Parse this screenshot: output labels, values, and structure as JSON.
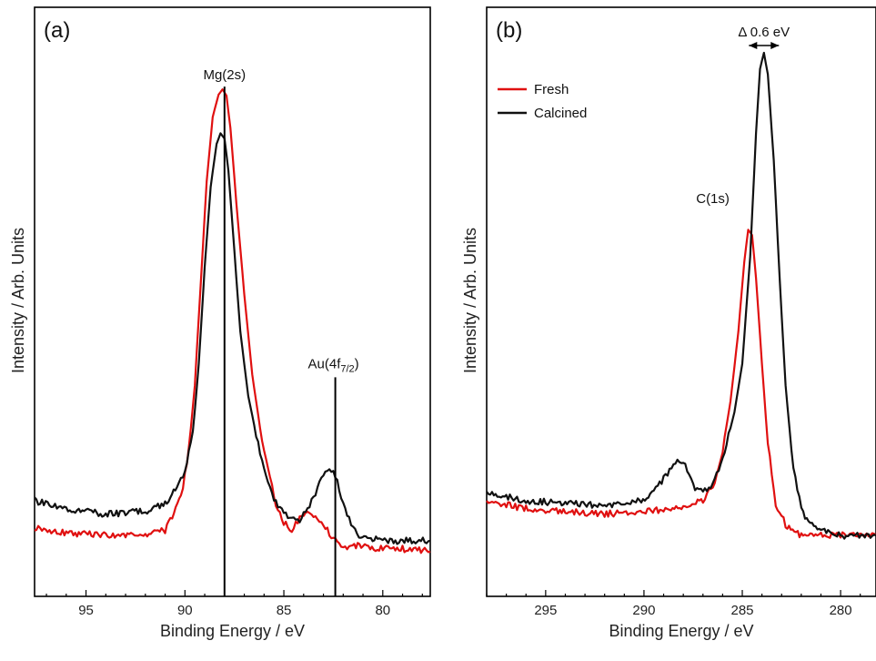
{
  "chart_data": [
    {
      "type": "line",
      "panel_label": "(a)",
      "xlabel": "Binding Energy / eV",
      "ylabel": "Intensity / Arb. Units",
      "xlim": [
        97.6,
        77.6
      ],
      "ylim": [
        0,
        1
      ],
      "x_reversed": true,
      "xticks": [
        95,
        90,
        85,
        80
      ],
      "grid": false,
      "annotations": [
        {
          "text": "Mg(2s)",
          "x": 88.0,
          "line_from": 0.0,
          "line_to": 0.937
        },
        {
          "text_main": "Au(4f",
          "text_sub": "7/2",
          "text_end": ")",
          "x": 82.4,
          "line_from": 0.0,
          "line_to": 0.395
        }
      ],
      "series": [
        {
          "name": "Fresh",
          "color": "#e01010",
          "x": [
            97.6,
            96.0,
            94.0,
            92.0,
            91.0,
            90.2,
            89.8,
            89.5,
            89.2,
            88.9,
            88.6,
            88.3,
            88.1,
            87.9,
            87.7,
            87.4,
            87.0,
            86.6,
            86.2,
            85.8,
            85.4,
            85.0,
            84.6,
            84.2,
            83.8,
            83.4,
            83.0,
            82.6,
            82.2,
            81.8,
            81.0,
            80.0,
            79.0,
            77.6
          ],
          "y": [
            0.115,
            0.105,
            0.1,
            0.1,
            0.11,
            0.17,
            0.26,
            0.38,
            0.57,
            0.76,
            0.88,
            0.922,
            0.932,
            0.92,
            0.86,
            0.72,
            0.55,
            0.4,
            0.3,
            0.22,
            0.16,
            0.125,
            0.11,
            0.13,
            0.14,
            0.135,
            0.118,
            0.1,
            0.085,
            0.08,
            0.08,
            0.075,
            0.075,
            0.07
          ]
        },
        {
          "name": "Calcined",
          "color": "#111111",
          "x": [
            97.6,
            96.0,
            94.0,
            92.0,
            91.0,
            90.4,
            90.0,
            89.6,
            89.3,
            89.0,
            88.7,
            88.4,
            88.2,
            88.0,
            87.8,
            87.5,
            87.2,
            86.8,
            86.3,
            85.8,
            85.4,
            85.0,
            84.6,
            84.2,
            83.8,
            83.4,
            83.0,
            82.7,
            82.5,
            82.3,
            82.0,
            81.6,
            81.2,
            80.6,
            80.0,
            79.0,
            77.6
          ],
          "y": [
            0.165,
            0.15,
            0.14,
            0.145,
            0.16,
            0.19,
            0.22,
            0.29,
            0.42,
            0.6,
            0.75,
            0.83,
            0.85,
            0.84,
            0.78,
            0.63,
            0.48,
            0.36,
            0.27,
            0.2,
            0.16,
            0.14,
            0.13,
            0.13,
            0.15,
            0.18,
            0.21,
            0.225,
            0.22,
            0.2,
            0.16,
            0.12,
            0.1,
            0.095,
            0.09,
            0.09,
            0.09
          ]
        }
      ]
    },
    {
      "type": "line",
      "panel_label": "(b)",
      "xlabel": "Binding Energy / eV",
      "ylabel": "Intensity / Arb. Units",
      "xlim": [
        298.0,
        278.2
      ],
      "ylim": [
        0,
        1
      ],
      "x_reversed": true,
      "xticks": [
        295,
        290,
        285,
        280
      ],
      "grid": false,
      "legend": {
        "position": "top-left",
        "entries": [
          "Fresh",
          "Calcined"
        ]
      },
      "annotations": [
        {
          "text": "C(1s)",
          "x": 286.5,
          "y": 0.72
        },
        {
          "text": "Δ 0.6 eV",
          "x_from": 284.2,
          "x_to": 283.6,
          "y": 1.0
        }
      ],
      "series": [
        {
          "name": "Fresh",
          "color": "#e01010",
          "x": [
            298.0,
            296.0,
            294.0,
            292.0,
            290.0,
            288.0,
            287.0,
            286.4,
            286.0,
            285.6,
            285.2,
            284.9,
            284.7,
            284.5,
            284.3,
            284.0,
            283.7,
            283.3,
            282.8,
            282.0,
            280.0,
            278.2
          ],
          "y": [
            0.165,
            0.15,
            0.145,
            0.14,
            0.145,
            0.15,
            0.165,
            0.2,
            0.26,
            0.35,
            0.48,
            0.61,
            0.67,
            0.66,
            0.58,
            0.42,
            0.27,
            0.16,
            0.12,
            0.1,
            0.1,
            0.1
          ]
        },
        {
          "name": "Calcined",
          "color": "#111111",
          "x": [
            298.0,
            296.0,
            294.0,
            292.0,
            290.5,
            289.5,
            288.9,
            288.3,
            287.8,
            287.4,
            287.0,
            286.6,
            286.2,
            285.8,
            285.4,
            285.0,
            284.6,
            284.3,
            284.1,
            283.9,
            283.7,
            283.4,
            283.1,
            282.8,
            282.4,
            281.9,
            281.0,
            280.0,
            278.2
          ],
          "y": [
            0.18,
            0.165,
            0.16,
            0.155,
            0.16,
            0.18,
            0.21,
            0.24,
            0.225,
            0.19,
            0.18,
            0.19,
            0.22,
            0.27,
            0.33,
            0.42,
            0.62,
            0.85,
            0.97,
            1.0,
            0.96,
            0.8,
            0.58,
            0.38,
            0.22,
            0.14,
            0.11,
            0.1,
            0.1
          ]
        }
      ]
    }
  ]
}
